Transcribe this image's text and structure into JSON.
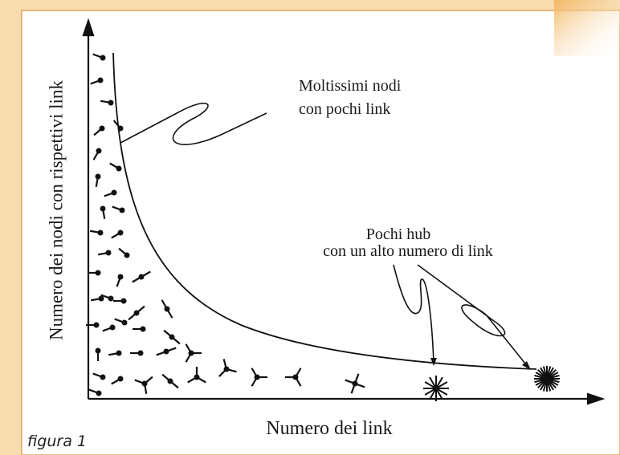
{
  "diagram": {
    "y_axis_label": "Numero dei nodi con rispettivi link",
    "x_axis_label": "Numero dei link",
    "annotations": [
      {
        "lines": [
          "Moltissimi nodi",
          "con pochi link"
        ]
      },
      {
        "lines": [
          "Pochi hub",
          "con un alto numero di link"
        ]
      }
    ],
    "caption": "figura 1"
  }
}
